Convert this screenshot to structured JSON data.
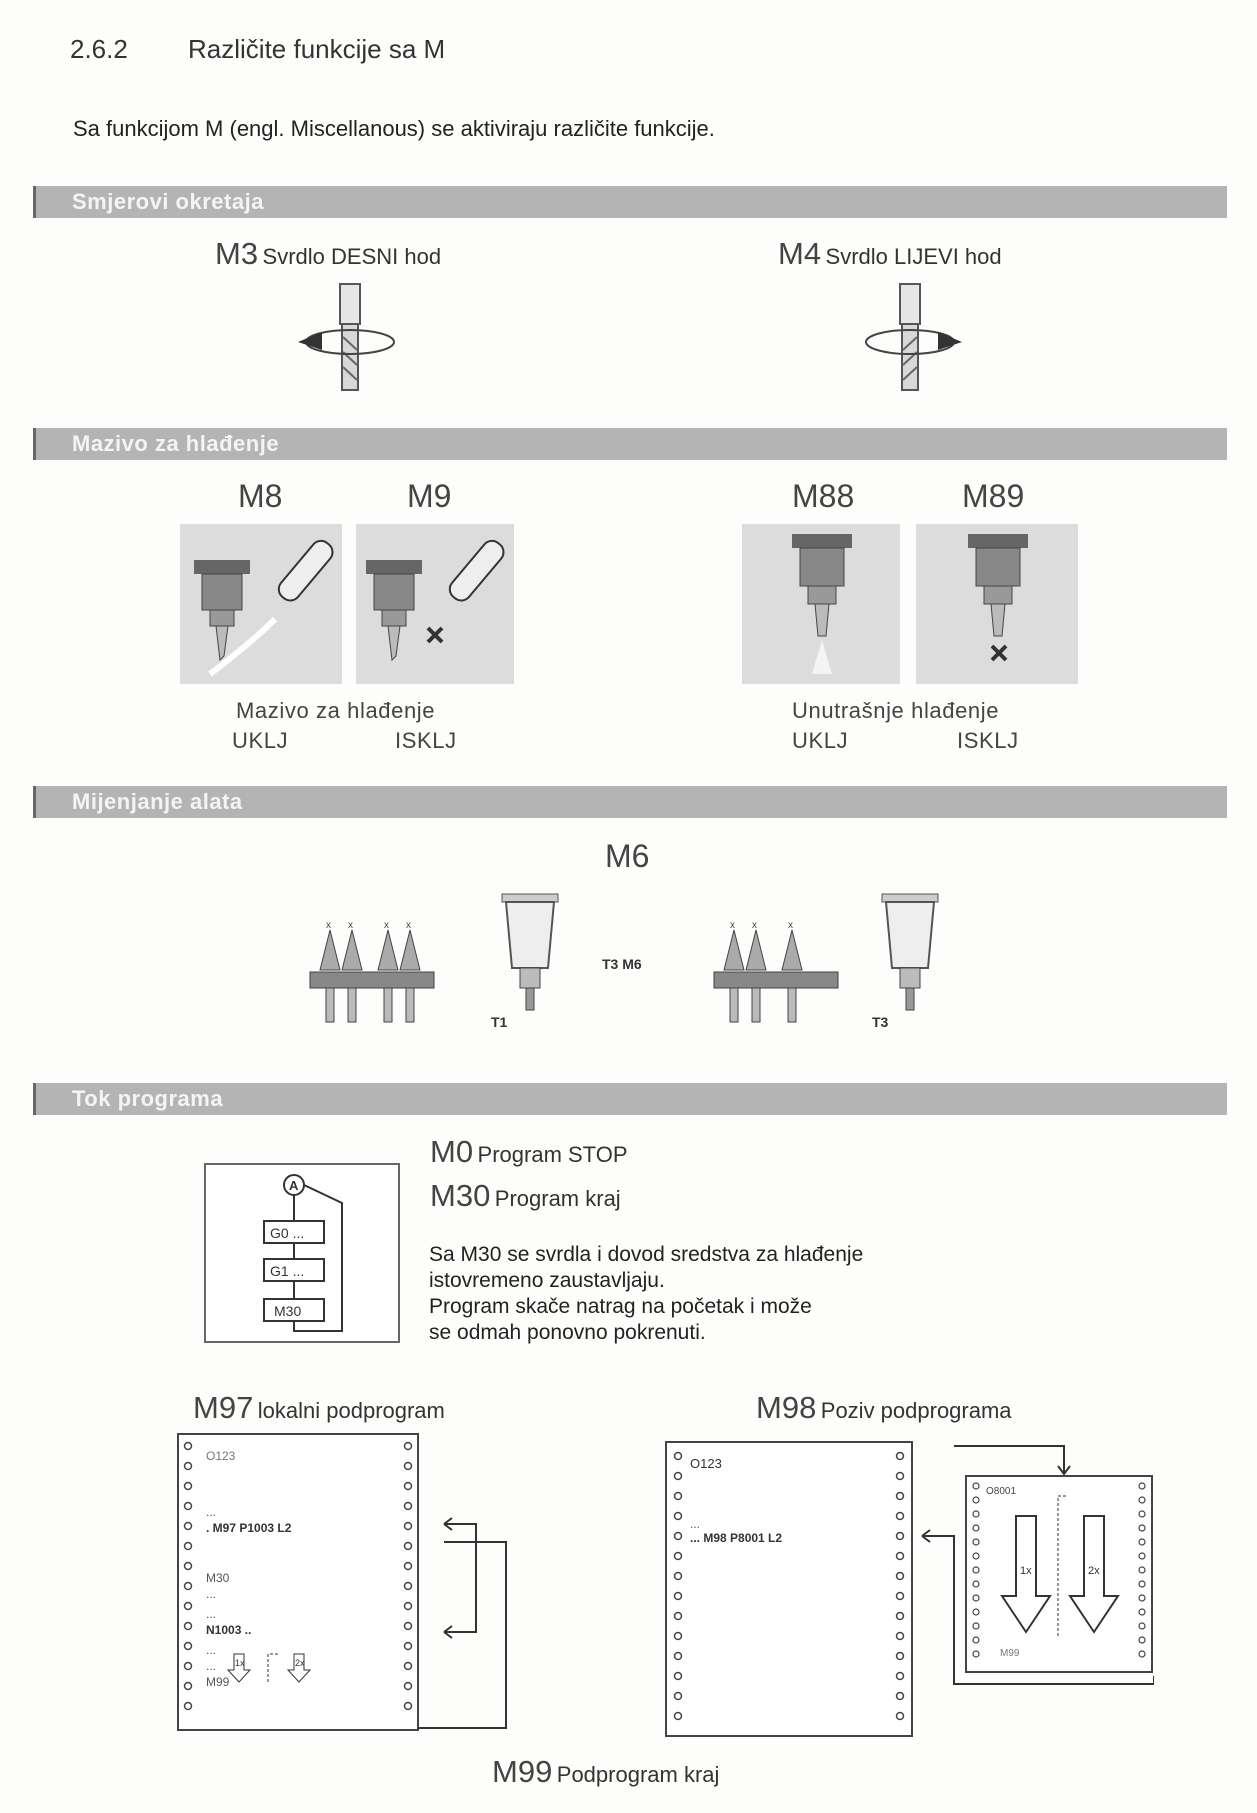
{
  "section": {
    "number": "2.6.2",
    "title": "Različite funkcije sa M"
  },
  "intro": "Sa funkcijom M (engl. Miscellanous) se aktiviraju različite funkcije.",
  "bars": {
    "rotation": "Smjerovi okretaja",
    "coolant": "Mazivo za hlađenje",
    "toolchange": "Mijenjanje alata",
    "flow": "Tok programa"
  },
  "rotation": {
    "m3": {
      "code": "M3",
      "label": "Svrdlo DESNI hod"
    },
    "m4": {
      "code": "M4",
      "label": "Svrdlo LIJEVI hod"
    }
  },
  "coolant": {
    "m8": "M8",
    "m9": "M9",
    "m88": "M88",
    "m89": "M89",
    "caption_left": "Mazivo za hlađenje",
    "on_left": "UKLJ",
    "off_left": "ISKLJ",
    "caption_right": "Unutrašnje hlađenje",
    "on_right": "UKLJ",
    "off_right": "ISKLJ"
  },
  "toolchange": {
    "code": "M6",
    "t1": "T1",
    "t3": "T3",
    "call": "T3 M6"
  },
  "flow": {
    "m0": {
      "code": "M0",
      "label": "Program STOP"
    },
    "m30": {
      "code": "M30",
      "label": "Program kraj"
    },
    "desc": [
      "Sa M30 se svrdla i dovod sredstva za hlađenje",
      "istovremeno zaustavljaju.",
      "Program skače natrag na početak i može",
      "se odmah ponovno pokrenuti."
    ],
    "diagram": {
      "a": "A",
      "g0": "G0 ...",
      "g1": "G1 ...",
      "m30": "M30"
    }
  },
  "m97": {
    "code": "M97",
    "label": "lokalni podprogram",
    "lines": {
      "o": "O123",
      "dots1": "...",
      "call": ". M97 P1003 L2",
      "m30": "M30",
      "dots2": "...",
      "dots3": "...",
      "n": "N1003 ..",
      "dots4": "...",
      "dots5": "...",
      "m99": "M99"
    },
    "x1": "1x",
    "x2": "2x"
  },
  "m98": {
    "code": "M98",
    "label": "Poziv podprograma",
    "lines": {
      "o": "O123",
      "dots": "...",
      "call": "... M98 P8001 L2"
    },
    "sub": {
      "o": "O8001",
      "x1": "1x",
      "x2": "2x",
      "m99": "M99"
    }
  },
  "m99": {
    "code": "M99",
    "label": "Podprogram kraj"
  }
}
